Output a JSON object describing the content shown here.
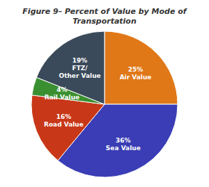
{
  "chart_data": {
    "type": "pie",
    "title": "Figure 9– Percent of Value by Mode of Transportation",
    "categories": [
      "Air Value",
      "Sea Value",
      "Road Value",
      "Rail Value",
      "FTZ/\nOther Value"
    ],
    "values": [
      25,
      36,
      16,
      4,
      19
    ],
    "value_labels": [
      "25%",
      "36%",
      "16%",
      "4%",
      "19%"
    ],
    "colors": [
      "#E07818",
      "#3A3DB5",
      "#C83818",
      "#3A9030",
      "#3A4A5A"
    ],
    "data_labels": true
  }
}
